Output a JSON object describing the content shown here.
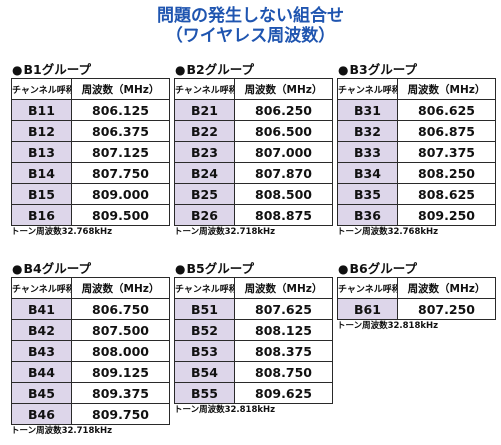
{
  "title": {
    "line1": "問題の発生しない組合せ",
    "line2": "（ワイヤレス周波数）"
  },
  "header": {
    "channel": "チャンネル呼称",
    "freq": "周波数（MHz）"
  },
  "groups": [
    {
      "name": "B1グループ",
      "rows": [
        {
          "ch": "B11",
          "freq": "806.125"
        },
        {
          "ch": "B12",
          "freq": "806.375"
        },
        {
          "ch": "B13",
          "freq": "807.125"
        },
        {
          "ch": "B14",
          "freq": "807.750"
        },
        {
          "ch": "B15",
          "freq": "809.000"
        },
        {
          "ch": "B16",
          "freq": "809.500"
        }
      ],
      "tone": "トーン周波数32.768kHz"
    },
    {
      "name": "B2グループ",
      "rows": [
        {
          "ch": "B21",
          "freq": "806.250"
        },
        {
          "ch": "B22",
          "freq": "806.500"
        },
        {
          "ch": "B23",
          "freq": "807.000"
        },
        {
          "ch": "B24",
          "freq": "807.870"
        },
        {
          "ch": "B25",
          "freq": "808.500"
        },
        {
          "ch": "B26",
          "freq": "808.875"
        }
      ],
      "tone": "トーン周波数32.718kHz"
    },
    {
      "name": "B3グループ",
      "rows": [
        {
          "ch": "B31",
          "freq": "806.625"
        },
        {
          "ch": "B32",
          "freq": "806.875"
        },
        {
          "ch": "B33",
          "freq": "807.375"
        },
        {
          "ch": "B34",
          "freq": "808.250"
        },
        {
          "ch": "B35",
          "freq": "808.625"
        },
        {
          "ch": "B36",
          "freq": "809.250"
        }
      ],
      "tone": "トーン周波数32.768kHz"
    },
    {
      "name": "B4グループ",
      "rows": [
        {
          "ch": "B41",
          "freq": "806.750"
        },
        {
          "ch": "B42",
          "freq": "807.500"
        },
        {
          "ch": "B43",
          "freq": "808.000"
        },
        {
          "ch": "B44",
          "freq": "809.125"
        },
        {
          "ch": "B45",
          "freq": "809.375"
        },
        {
          "ch": "B46",
          "freq": "809.750"
        }
      ],
      "tone": "トーン周波数32.718kHz"
    },
    {
      "name": "B5グループ",
      "rows": [
        {
          "ch": "B51",
          "freq": "807.625"
        },
        {
          "ch": "B52",
          "freq": "808.125"
        },
        {
          "ch": "B53",
          "freq": "808.375"
        },
        {
          "ch": "B54",
          "freq": "808.750"
        },
        {
          "ch": "B55",
          "freq": "809.625"
        }
      ],
      "tone": "トーン周波数32.818kHz"
    },
    {
      "name": "B6グループ",
      "rows": [
        {
          "ch": "B61",
          "freq": "807.250"
        }
      ],
      "tone": "トーン周波数32.818kHz"
    }
  ]
}
